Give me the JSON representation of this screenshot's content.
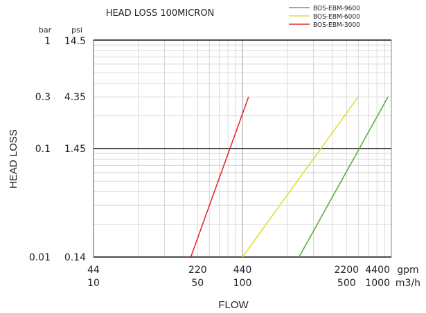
{
  "chart_data": {
    "type": "line",
    "title": "HEAD LOSS 100MICRON",
    "xlabel": "FLOW",
    "ylabel": "HEAD LOSS",
    "x_scale": "log",
    "y_scale": "log",
    "x_units": [
      "gpm",
      "m3/h"
    ],
    "y_units": [
      "bar",
      "psi"
    ],
    "xlim_m3h": [
      10,
      1000
    ],
    "ylim_bar": [
      0.01,
      1
    ],
    "x_ticks": [
      {
        "gpm": "44",
        "m3h": "10",
        "value": 10
      },
      {
        "gpm": "220",
        "m3h": "50",
        "value": 50
      },
      {
        "gpm": "440",
        "m3h": "100",
        "value": 100
      },
      {
        "gpm": "2200",
        "m3h": "500",
        "value": 500
      },
      {
        "gpm": "4400",
        "m3h": "1000",
        "value": 1000
      }
    ],
    "y_ticks": [
      {
        "bar": "1",
        "psi": "14.5",
        "value": 1
      },
      {
        "bar": "0.3",
        "psi": "4.35",
        "value": 0.3
      },
      {
        "bar": "0.1",
        "psi": "1.45",
        "value": 0.1
      },
      {
        "bar": "0.01",
        "psi": "0.14",
        "value": 0.01
      }
    ],
    "grid": true,
    "legend_position": "top-right",
    "series": [
      {
        "name": "BOS-EBM-9600",
        "color": "#5aad3a",
        "x": [
          240,
          950
        ],
        "y": [
          0.01,
          0.3
        ]
      },
      {
        "name": "BOS-EBM-6000",
        "color": "#dede3a",
        "x": [
          100,
          600
        ],
        "y": [
          0.01,
          0.3
        ]
      },
      {
        "name": "BOS-EBM-3000",
        "color": "#e8282a",
        "x": [
          45,
          110
        ],
        "y": [
          0.01,
          0.3
        ]
      }
    ]
  }
}
